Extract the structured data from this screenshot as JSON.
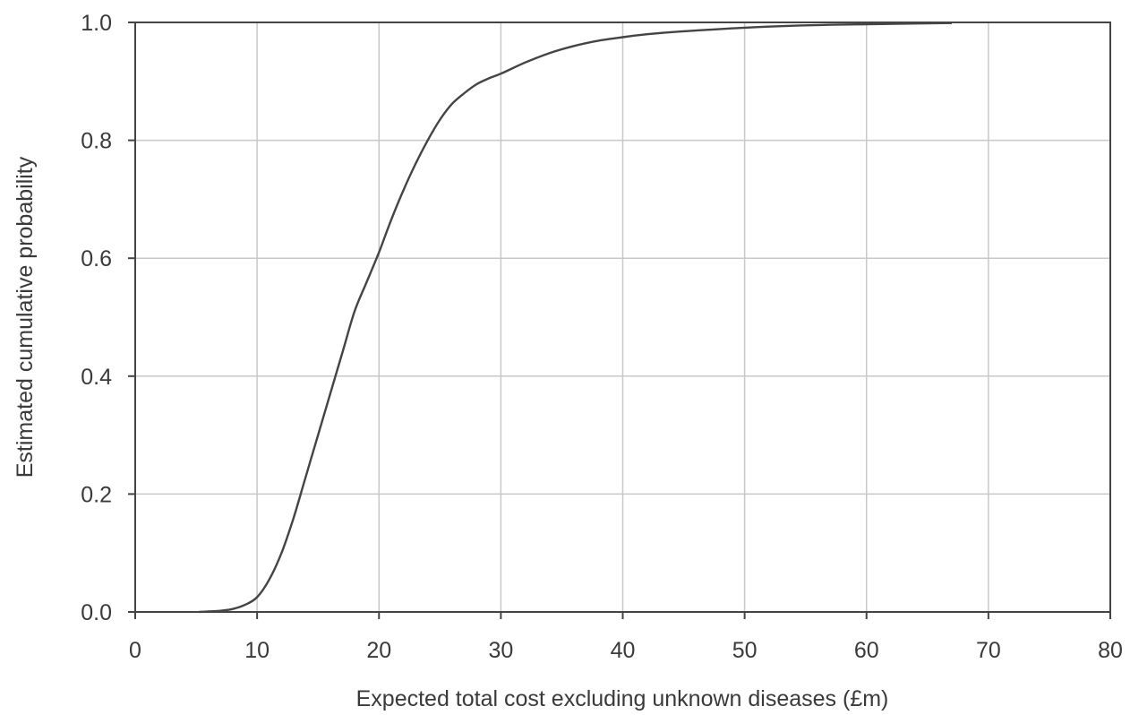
{
  "chart_data": {
    "type": "line",
    "title": "",
    "xlabel": "Expected total cost excluding unknown diseases (£m)",
    "ylabel": "Estimated cumulative probability",
    "xlim": [
      0,
      80
    ],
    "ylim": [
      0,
      1
    ],
    "x_ticks": [
      0,
      10,
      20,
      30,
      40,
      50,
      60,
      70,
      80
    ],
    "x_tick_labels": [
      "0",
      "10",
      "20",
      "30",
      "40",
      "50",
      "60",
      "70",
      "80"
    ],
    "y_ticks": [
      0,
      0.2,
      0.4,
      0.6,
      0.8,
      1.0
    ],
    "y_tick_labels": [
      "0.0",
      "0.2",
      "0.4",
      "0.6",
      "0.8",
      "1.0"
    ],
    "grid": true,
    "legend": "none",
    "series": [
      {
        "color": "#444444",
        "x": [
          5.2,
          7,
          8,
          9,
          10,
          11,
          12,
          13,
          14,
          15,
          16,
          17,
          18,
          19,
          20,
          21,
          22,
          23,
          24,
          25,
          26,
          27,
          28,
          29,
          30,
          32,
          34,
          36,
          38,
          40,
          42,
          45,
          50,
          55,
          60,
          67
        ],
        "y": [
          0.0,
          0.002,
          0.005,
          0.012,
          0.025,
          0.055,
          0.1,
          0.16,
          0.23,
          0.3,
          0.37,
          0.44,
          0.51,
          0.56,
          0.61,
          0.665,
          0.715,
          0.76,
          0.8,
          0.835,
          0.862,
          0.88,
          0.895,
          0.905,
          0.913,
          0.932,
          0.948,
          0.96,
          0.969,
          0.975,
          0.98,
          0.985,
          0.991,
          0.995,
          0.997,
          0.999
        ]
      }
    ]
  }
}
